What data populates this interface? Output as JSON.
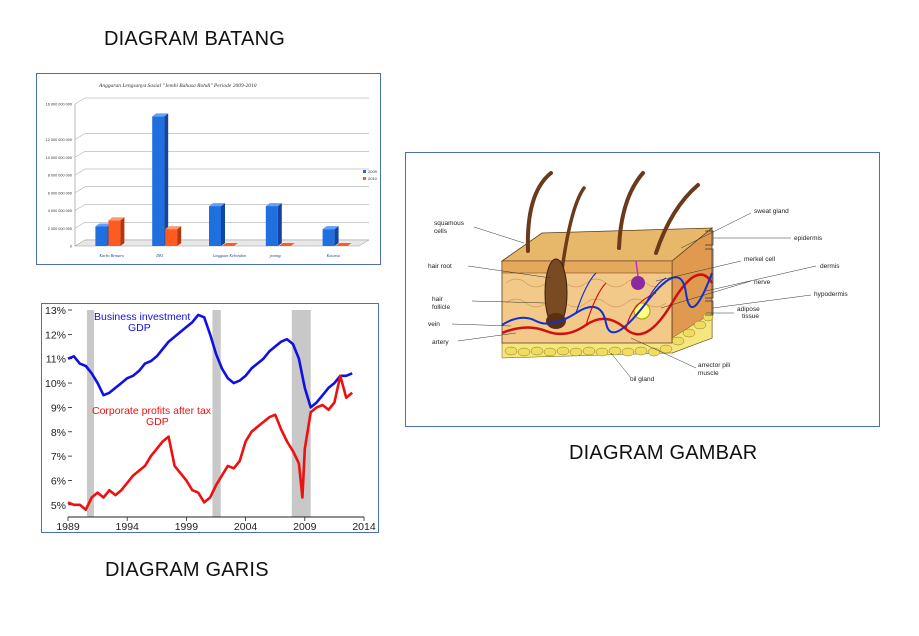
{
  "captions": {
    "bar": "DIAGRAM BATANG",
    "line": "DIAGRAM GARIS",
    "image": "DIAGRAM GAMBAR"
  },
  "colors": {
    "frame": "#4a6fb8",
    "bar_2009": "#1f6fe0",
    "bar_2010": "#ff5a1f",
    "line_business": "#1010e6",
    "line_profits": "#ee1010",
    "recession": "#c8c8c8",
    "skin_epidermis": "#e8b86a",
    "skin_dermis": "#f3c98a",
    "fat": "#f0e070"
  },
  "chart_data": [
    {
      "type": "bar",
      "title": "Anggaran Lengsanya Sosial \"Jembi Bahasa Rohdi\" Periode 2009-2010",
      "categories": [
        "Karbo Bensaru",
        "DKI",
        "Lingguan Kebondan",
        "ponmg",
        "Kotonsa"
      ],
      "series": [
        {
          "name": "2009",
          "values": [
            2200000000,
            14600000000,
            4500000000,
            4500000000,
            1900000000
          ]
        },
        {
          "name": "2010",
          "values": [
            2900000000,
            1900000000,
            0,
            0,
            0
          ]
        }
      ],
      "yticks": [
        "16 000 000 000",
        "12 000 000 000",
        "10 000 000 000",
        "8 000 000 000",
        "6 000 000 000",
        "4 000 000 000",
        "2 000 000 000",
        "0"
      ],
      "tick_values": [
        16000000000,
        12000000000,
        10000000000,
        8000000000,
        6000000000,
        4000000000,
        2000000000,
        0
      ],
      "ylim": [
        0,
        16000000000
      ],
      "legend": [
        "2009",
        "2010"
      ],
      "legend_position": "right",
      "grid": true
    },
    {
      "type": "line",
      "xlim": [
        1989,
        2014
      ],
      "ylim": [
        4.5,
        13
      ],
      "xticks": [
        "1989",
        "1994",
        "1999",
        "2004",
        "2009",
        "2014"
      ],
      "yticks": [
        "13%",
        "12%",
        "11%",
        "10%",
        "9%",
        "8%",
        "7%",
        "6%",
        "5%"
      ],
      "recessions": [
        [
          1990.6,
          1991.2
        ],
        [
          2001.2,
          2001.9
        ],
        [
          2007.9,
          2009.5
        ]
      ],
      "annotations": {
        "business_line1": "Business investment",
        "business_line2": "GDP",
        "profits_line1": "Corporate profits after tax",
        "profits_line2": "GDP"
      },
      "series": [
        {
          "name": "Business investment / GDP",
          "x": [
            1989,
            1989.5,
            1990,
            1990.5,
            1991,
            1991.5,
            1992,
            1992.5,
            1993,
            1993.5,
            1994,
            1994.5,
            1995,
            1995.5,
            1996,
            1996.5,
            1997,
            1997.5,
            1998,
            1998.5,
            1999,
            1999.5,
            2000,
            2000.5,
            2001,
            2001.5,
            2002,
            2002.5,
            2003,
            2003.5,
            2004,
            2004.5,
            2005,
            2005.5,
            2006,
            2006.5,
            2007,
            2007.5,
            2008,
            2008.5,
            2009,
            2009.5,
            2010,
            2010.5,
            2011,
            2011.5,
            2012,
            2012.5,
            2013
          ],
          "y": [
            11.0,
            11.1,
            10.8,
            10.7,
            10.4,
            10.0,
            9.5,
            9.6,
            9.8,
            10.0,
            10.2,
            10.3,
            10.5,
            10.8,
            10.9,
            11.1,
            11.4,
            11.7,
            11.9,
            12.1,
            12.3,
            12.5,
            12.8,
            12.7,
            12.0,
            11.2,
            10.6,
            10.2,
            10.0,
            10.1,
            10.3,
            10.6,
            10.8,
            11.0,
            11.3,
            11.5,
            11.7,
            11.8,
            11.6,
            11.0,
            9.8,
            9.0,
            9.2,
            9.5,
            9.8,
            10.0,
            10.3,
            10.3,
            10.4
          ]
        },
        {
          "name": "Corporate profits after tax / GDP",
          "x": [
            1989,
            1989.5,
            1990,
            1990.5,
            1991,
            1991.5,
            1992,
            1992.5,
            1993,
            1993.5,
            1994,
            1994.5,
            1995,
            1995.5,
            1996,
            1996.5,
            1997,
            1997.5,
            1998,
            1998.5,
            1999,
            1999.5,
            2000,
            2000.5,
            2001,
            2001.5,
            2002,
            2002.5,
            2003,
            2003.5,
            2004,
            2004.5,
            2005,
            2005.5,
            2006,
            2006.5,
            2007,
            2007.5,
            2008,
            2008.5,
            2008.8,
            2009,
            2009.5,
            2010,
            2010.5,
            2011,
            2011.5,
            2012,
            2012.5,
            2013
          ],
          "y": [
            5.1,
            5.0,
            5.0,
            4.8,
            5.3,
            5.5,
            5.3,
            5.6,
            5.4,
            5.6,
            5.9,
            6.2,
            6.4,
            6.6,
            7.0,
            7.3,
            7.6,
            7.8,
            6.6,
            6.3,
            6.0,
            5.6,
            5.5,
            5.1,
            5.3,
            5.8,
            6.2,
            6.6,
            6.5,
            6.8,
            7.6,
            8.0,
            8.2,
            8.4,
            8.6,
            8.7,
            8.1,
            7.6,
            7.2,
            6.7,
            5.3,
            7.3,
            8.8,
            9.0,
            9.1,
            8.9,
            9.2,
            10.3,
            9.4,
            9.6
          ]
        }
      ]
    }
  ],
  "skin": {
    "left_labels": [
      "squamous",
      "cells",
      "hair root",
      "hair",
      "follicle",
      "vein",
      "artery"
    ],
    "right_labels": [
      "sweat gland",
      "epidermis",
      "merkel cell",
      "dermis",
      "nerve",
      "hypodermis",
      "adipose",
      "tissue",
      "arrector pili",
      "muscle",
      "oil gland"
    ]
  }
}
